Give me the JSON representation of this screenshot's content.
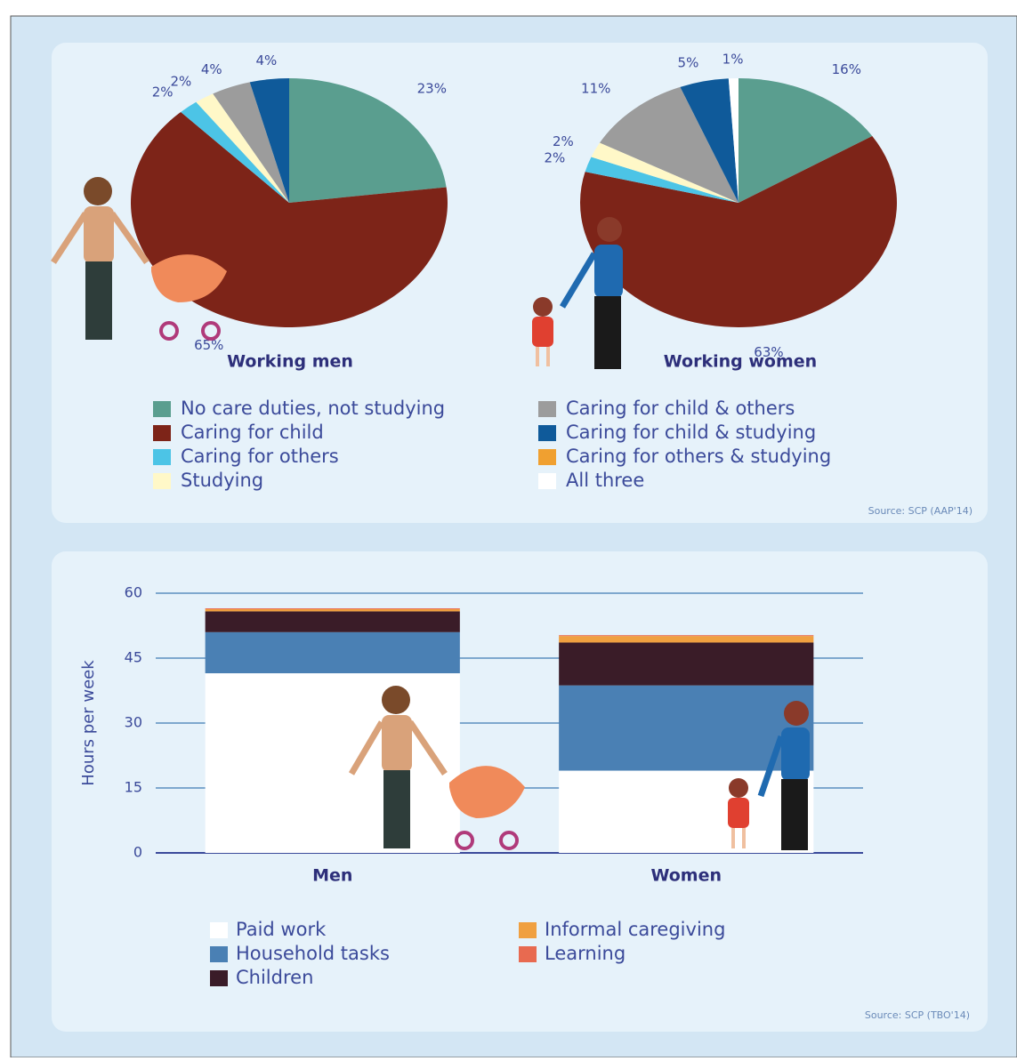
{
  "chart_data": [
    {
      "type": "pie",
      "title": "Working men",
      "categories": [
        "No care duties, not studying",
        "Caring for child",
        "Caring for others",
        "Studying",
        "Caring for child & others",
        "Caring for child & studying",
        "Caring for others & studying",
        "All three"
      ],
      "colors": [
        "#5a9e8f",
        "#7d2418",
        "#4cc4e6",
        "#fff8c8",
        "#9c9c9c",
        "#0f5a9a",
        "#f0a030",
        "#ffffff"
      ],
      "values": [
        23,
        65,
        2,
        2,
        4,
        4,
        0,
        0
      ],
      "value_labels": [
        "23%",
        "65%",
        "2%",
        "2%",
        "4%",
        "4%",
        null,
        null
      ]
    },
    {
      "type": "pie",
      "title": "Working women",
      "values": [
        16,
        63,
        2,
        2,
        11,
        5,
        0,
        1
      ],
      "value_labels": [
        "16%",
        "63%",
        "2%",
        "2%",
        "11%",
        "5%",
        null,
        "1%"
      ],
      "source": "Source: SCP (AAP'14)"
    },
    {
      "type": "stacked-bar",
      "ylabel": "Hours per week",
      "categories": [
        "Men",
        "Women"
      ],
      "series": [
        {
          "name": "Paid work",
          "color": "#ffffff",
          "values": [
            41.5,
            19
          ]
        },
        {
          "name": "Household tasks",
          "color": "#4a80b4",
          "values": [
            9.5,
            19.7
          ]
        },
        {
          "name": "Children",
          "color": "#3a1c28",
          "values": [
            4.8,
            9.9
          ]
        },
        {
          "name": "Informal caregiving",
          "color": "#f0a040",
          "values": [
            0.5,
            1.5
          ]
        },
        {
          "name": "Learning",
          "color": "#e86a50",
          "values": [
            0.2,
            0.2
          ]
        }
      ],
      "ylim": [
        0,
        60
      ],
      "yticks": [
        0,
        15,
        30,
        45,
        60
      ],
      "grid": true,
      "source": "Source: SCP (TBO'14)"
    }
  ]
}
